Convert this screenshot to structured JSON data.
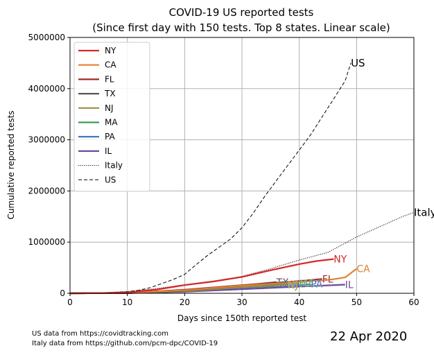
{
  "footer": {
    "source_us": "US data from https://covidtracking.com",
    "source_italy": "Italy data from https://github.com/pcm-dpc/COVID-19",
    "date": "22 Apr 2020"
  },
  "chart_data": {
    "type": "line",
    "title": "COVID-19 US reported tests",
    "subtitle": "(Since first day with 150 tests. Top 8 states. Linear scale)",
    "xlabel": "Days since 150th reported test",
    "ylabel": "Cumulative reported tests",
    "xlim": [
      0,
      60
    ],
    "ylim": [
      0,
      5000000
    ],
    "xticks": [
      0,
      10,
      20,
      30,
      40,
      50,
      60
    ],
    "yticks": [
      0,
      1000000,
      2000000,
      3000000,
      4000000,
      5000000
    ],
    "xtick_labels": [
      "0",
      "10",
      "20",
      "30",
      "40",
      "50",
      "60"
    ],
    "ytick_labels": [
      "0",
      "1000000",
      "2000000",
      "3000000",
      "4000000",
      "5000000"
    ],
    "grid": true,
    "legend_position": "top-left",
    "series": [
      {
        "name": "NY",
        "color": "#d62728",
        "style": "solid",
        "x": [
          0,
          5,
          10,
          15,
          20,
          25,
          30,
          35,
          40,
          43,
          46
        ],
        "y": [
          0,
          3000,
          15000,
          70000,
          160000,
          230000,
          320000,
          450000,
          570000,
          630000,
          670000
        ],
        "end_label": "NY"
      },
      {
        "name": "CA",
        "color": "#e08030",
        "style": "solid",
        "x": [
          0,
          10,
          20,
          30,
          40,
          44,
          46,
          48,
          50
        ],
        "y": [
          0,
          8000,
          60000,
          150000,
          220000,
          250000,
          275000,
          310000,
          480000
        ],
        "end_label": "CA"
      },
      {
        "name": "FL",
        "color": "#9b2a2f",
        "style": "solid",
        "x": [
          0,
          10,
          20,
          30,
          40,
          44
        ],
        "y": [
          0,
          6000,
          70000,
          160000,
          240000,
          280000
        ],
        "end_label": "FL"
      },
      {
        "name": "TX",
        "color": "#555555",
        "style": "solid",
        "x": [
          0,
          10,
          20,
          30,
          36
        ],
        "y": [
          0,
          5000,
          50000,
          150000,
          220000
        ],
        "end_label": "TX"
      },
      {
        "name": "NJ",
        "color": "#a08a40",
        "style": "solid",
        "x": [
          0,
          10,
          20,
          30,
          38
        ],
        "y": [
          0,
          4000,
          40000,
          120000,
          160000
        ],
        "end_label": "NJ"
      },
      {
        "name": "MA",
        "color": "#3a9e56",
        "style": "solid",
        "x": [
          0,
          10,
          20,
          30,
          40
        ],
        "y": [
          0,
          5000,
          60000,
          140000,
          190000
        ],
        "end_label": "MA"
      },
      {
        "name": "PA",
        "color": "#3a6eb5",
        "style": "solid",
        "x": [
          0,
          10,
          20,
          30,
          40,
          42
        ],
        "y": [
          0,
          3000,
          40000,
          110000,
          160000,
          180000
        ],
        "end_label": "PA"
      },
      {
        "name": "IL",
        "color": "#6a4b9b",
        "style": "solid",
        "x": [
          0,
          10,
          20,
          30,
          40,
          48
        ],
        "y": [
          0,
          3000,
          30000,
          80000,
          130000,
          170000
        ],
        "end_label": "IL"
      },
      {
        "name": "Italy",
        "color": "#000000",
        "style": "dotted",
        "x": [
          0,
          5,
          10,
          15,
          20,
          25,
          30,
          35,
          40,
          45,
          50,
          55,
          58,
          60
        ],
        "y": [
          0,
          10000,
          35000,
          90000,
          170000,
          240000,
          330000,
          480000,
          650000,
          800000,
          1100000,
          1350000,
          1500000,
          1580000
        ],
        "end_label": "Italy"
      },
      {
        "name": "US",
        "color": "#000000",
        "style": "dashed",
        "x": [
          0,
          5,
          10,
          12,
          14,
          16,
          18,
          20,
          22,
          24,
          26,
          28,
          30,
          32,
          34,
          36,
          38,
          40,
          42,
          44,
          46,
          48,
          49
        ],
        "y": [
          0,
          5000,
          30000,
          60000,
          110000,
          190000,
          270000,
          370000,
          560000,
          740000,
          900000,
          1060000,
          1280000,
          1570000,
          1900000,
          2200000,
          2500000,
          2800000,
          3100000,
          3450000,
          3800000,
          4150000,
          4500000
        ],
        "end_label": "US"
      }
    ]
  }
}
